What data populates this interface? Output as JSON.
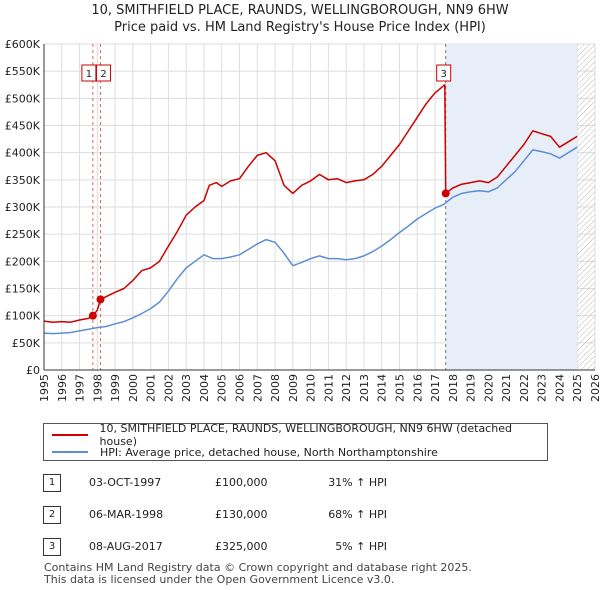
{
  "title_line1": "10, SMITHFIELD PLACE, RAUNDS, WELLINGBOROUGH, NN9 6HW",
  "title_line2": "Price paid vs. HM Land Registry's House Price Index (HPI)",
  "chart_data": {
    "type": "line",
    "x_range": [
      1995,
      2026
    ],
    "y_range": [
      0,
      600000
    ],
    "y_ticks": [
      {
        "value": 0,
        "label": "£0"
      },
      {
        "value": 50000,
        "label": "£50K"
      },
      {
        "value": 100000,
        "label": "£100K"
      },
      {
        "value": 150000,
        "label": "£150K"
      },
      {
        "value": 200000,
        "label": "£200K"
      },
      {
        "value": 250000,
        "label": "£250K"
      },
      {
        "value": 300000,
        "label": "£300K"
      },
      {
        "value": 350000,
        "label": "£350K"
      },
      {
        "value": 400000,
        "label": "£400K"
      },
      {
        "value": 450000,
        "label": "£450K"
      },
      {
        "value": 500000,
        "label": "£500K"
      },
      {
        "value": 550000,
        "label": "£550K"
      },
      {
        "value": 600000,
        "label": "£600K"
      }
    ],
    "x_ticks": [
      "1995",
      "1996",
      "1997",
      "1998",
      "1999",
      "2000",
      "2001",
      "2002",
      "2003",
      "2004",
      "2005",
      "2006",
      "2007",
      "2008",
      "2009",
      "2010",
      "2011",
      "2012",
      "2013",
      "2014",
      "2015",
      "2016",
      "2017",
      "2018",
      "2019",
      "2020",
      "2021",
      "2022",
      "2023",
      "2024",
      "2025",
      "2026"
    ],
    "grid": true,
    "hatched_region": {
      "from": 2025.0,
      "to": 2026.0
    },
    "shaded_region": {
      "from": 2017.6,
      "to": 2025.0
    },
    "series": [
      {
        "name": "10, SMITHFIELD PLACE, RAUNDS, WELLINGBOROUGH, NN9 6HW (detached house)",
        "color": "#cc0000",
        "points": [
          [
            1995.0,
            90000
          ],
          [
            1995.5,
            88000
          ],
          [
            1996.0,
            89000
          ],
          [
            1996.5,
            88000
          ],
          [
            1997.0,
            92000
          ],
          [
            1997.5,
            95000
          ],
          [
            1997.75,
            100000
          ],
          [
            1998.0,
            110000
          ],
          [
            1998.18,
            130000
          ],
          [
            1998.5,
            135000
          ],
          [
            1999.0,
            143000
          ],
          [
            1999.5,
            150000
          ],
          [
            2000.0,
            165000
          ],
          [
            2000.5,
            183000
          ],
          [
            2001.0,
            188000
          ],
          [
            2001.5,
            200000
          ],
          [
            2002.0,
            228000
          ],
          [
            2002.5,
            255000
          ],
          [
            2003.0,
            285000
          ],
          [
            2003.5,
            300000
          ],
          [
            2004.0,
            312000
          ],
          [
            2004.3,
            340000
          ],
          [
            2004.7,
            345000
          ],
          [
            2005.0,
            338000
          ],
          [
            2005.5,
            348000
          ],
          [
            2006.0,
            352000
          ],
          [
            2006.5,
            375000
          ],
          [
            2007.0,
            395000
          ],
          [
            2007.5,
            400000
          ],
          [
            2008.0,
            385000
          ],
          [
            2008.5,
            340000
          ],
          [
            2009.0,
            325000
          ],
          [
            2009.5,
            340000
          ],
          [
            2010.0,
            348000
          ],
          [
            2010.5,
            360000
          ],
          [
            2011.0,
            350000
          ],
          [
            2011.5,
            352000
          ],
          [
            2012.0,
            345000
          ],
          [
            2012.5,
            348000
          ],
          [
            2013.0,
            350000
          ],
          [
            2013.5,
            360000
          ],
          [
            2014.0,
            375000
          ],
          [
            2014.5,
            395000
          ],
          [
            2015.0,
            415000
          ],
          [
            2015.5,
            440000
          ],
          [
            2016.0,
            465000
          ],
          [
            2016.5,
            490000
          ],
          [
            2017.0,
            510000
          ],
          [
            2017.55,
            525000
          ],
          [
            2017.6,
            325000
          ],
          [
            2018.0,
            335000
          ],
          [
            2018.5,
            342000
          ],
          [
            2019.0,
            345000
          ],
          [
            2019.5,
            348000
          ],
          [
            2020.0,
            345000
          ],
          [
            2020.5,
            355000
          ],
          [
            2021.0,
            375000
          ],
          [
            2021.5,
            395000
          ],
          [
            2022.0,
            415000
          ],
          [
            2022.5,
            440000
          ],
          [
            2023.0,
            435000
          ],
          [
            2023.5,
            430000
          ],
          [
            2024.0,
            410000
          ],
          [
            2024.5,
            420000
          ],
          [
            2025.0,
            430000
          ]
        ]
      },
      {
        "name": "HPI: Average price, detached house, North Northamptonshire",
        "color": "#5b8fd4",
        "points": [
          [
            1995.0,
            68000
          ],
          [
            1995.5,
            67000
          ],
          [
            1996.0,
            68000
          ],
          [
            1996.5,
            69000
          ],
          [
            1997.0,
            72000
          ],
          [
            1997.5,
            75000
          ],
          [
            1998.0,
            78000
          ],
          [
            1998.5,
            80000
          ],
          [
            1999.0,
            85000
          ],
          [
            1999.5,
            89000
          ],
          [
            2000.0,
            96000
          ],
          [
            2000.5,
            104000
          ],
          [
            2001.0,
            113000
          ],
          [
            2001.5,
            125000
          ],
          [
            2002.0,
            145000
          ],
          [
            2002.5,
            168000
          ],
          [
            2003.0,
            188000
          ],
          [
            2003.5,
            200000
          ],
          [
            2004.0,
            212000
          ],
          [
            2004.5,
            205000
          ],
          [
            2005.0,
            205000
          ],
          [
            2005.5,
            208000
          ],
          [
            2006.0,
            212000
          ],
          [
            2006.5,
            222000
          ],
          [
            2007.0,
            232000
          ],
          [
            2007.5,
            240000
          ],
          [
            2008.0,
            235000
          ],
          [
            2008.5,
            215000
          ],
          [
            2009.0,
            192000
          ],
          [
            2009.5,
            198000
          ],
          [
            2010.0,
            205000
          ],
          [
            2010.5,
            210000
          ],
          [
            2011.0,
            205000
          ],
          [
            2011.5,
            205000
          ],
          [
            2012.0,
            203000
          ],
          [
            2012.5,
            205000
          ],
          [
            2013.0,
            210000
          ],
          [
            2013.5,
            218000
          ],
          [
            2014.0,
            228000
          ],
          [
            2014.5,
            240000
          ],
          [
            2015.0,
            253000
          ],
          [
            2015.5,
            265000
          ],
          [
            2016.0,
            278000
          ],
          [
            2016.5,
            288000
          ],
          [
            2017.0,
            298000
          ],
          [
            2017.5,
            305000
          ],
          [
            2018.0,
            318000
          ],
          [
            2018.5,
            325000
          ],
          [
            2019.0,
            328000
          ],
          [
            2019.5,
            330000
          ],
          [
            2020.0,
            328000
          ],
          [
            2020.5,
            335000
          ],
          [
            2021.0,
            350000
          ],
          [
            2021.5,
            365000
          ],
          [
            2022.0,
            385000
          ],
          [
            2022.5,
            405000
          ],
          [
            2023.0,
            402000
          ],
          [
            2023.5,
            398000
          ],
          [
            2024.0,
            390000
          ],
          [
            2024.5,
            400000
          ],
          [
            2025.0,
            410000
          ]
        ]
      }
    ],
    "transactions": [
      {
        "label": "1",
        "x": 1997.75,
        "y": 100000
      },
      {
        "label": "2",
        "x": 1998.18,
        "y": 130000
      },
      {
        "label": "3",
        "x": 2017.6,
        "y": 325000
      }
    ]
  },
  "legend": {
    "property_label": "10, SMITHFIELD PLACE, RAUNDS, WELLINGBOROUGH, NN9 6HW (detached house)",
    "hpi_label": "HPI: Average price, detached house, North Northamptonshire",
    "property_color": "#cc0000",
    "hpi_color": "#5b8fd4"
  },
  "table": [
    {
      "num": "1",
      "date": "03-OCT-1997",
      "price": "£100,000",
      "hpi": "31% ↑ HPI"
    },
    {
      "num": "2",
      "date": "06-MAR-1998",
      "price": "£130,000",
      "hpi": "68% ↑ HPI"
    },
    {
      "num": "3",
      "date": "08-AUG-2017",
      "price": "£325,000",
      "hpi": "5% ↑ HPI"
    }
  ],
  "footer": {
    "line1": "Contains HM Land Registry data © Crown copyright and database right 2025.",
    "line2": "This data is licensed under the Open Government Licence v3.0."
  }
}
